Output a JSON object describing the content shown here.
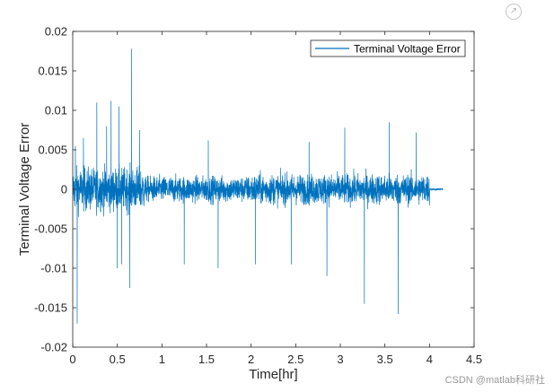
{
  "chart_data": {
    "type": "line",
    "title": "",
    "xlabel": "Time[hr]",
    "ylabel": "Terminal Voltage Error",
    "xlim": [
      0,
      4.5
    ],
    "ylim": [
      -0.02,
      0.02
    ],
    "xticks": [
      0,
      0.5,
      1,
      1.5,
      2,
      2.5,
      3,
      3.5,
      4,
      4.5
    ],
    "xtick_labels": [
      "0",
      "0.5",
      "1",
      "1.5",
      "2",
      "2.5",
      "3",
      "3.5",
      "4",
      "4.5"
    ],
    "yticks": [
      0.02,
      0.015,
      0.01,
      0.005,
      0,
      -0.005,
      -0.01,
      -0.015,
      -0.02
    ],
    "ytick_labels": [
      "0.02",
      "0.015",
      "0.01",
      "0.005",
      "0",
      "-0.005",
      "-0.01",
      "-0.015",
      "-0.02"
    ],
    "grid": false,
    "legend_position": "top-right",
    "series": [
      {
        "name": "Terminal Voltage Error",
        "color": "#0072BD",
        "noise_envelope": [
          {
            "x": [
              0.0,
              0.8
            ],
            "amplitude": 0.005
          },
          {
            "x": [
              0.8,
              2.0
            ],
            "amplitude": 0.003
          },
          {
            "x": [
              2.0,
              4.0
            ],
            "amplitude": 0.0035
          },
          {
            "x": [
              4.0,
              4.15
            ],
            "amplitude": 0.0002
          }
        ],
        "spikes": [
          {
            "x": 0.03,
            "y": 0.0055
          },
          {
            "x": 0.05,
            "y": -0.017
          },
          {
            "x": 0.12,
            "y": 0.0065
          },
          {
            "x": 0.27,
            "y": 0.011
          },
          {
            "x": 0.38,
            "y": 0.008
          },
          {
            "x": 0.43,
            "y": 0.0112
          },
          {
            "x": 0.5,
            "y": -0.01
          },
          {
            "x": 0.52,
            "y": 0.0105
          },
          {
            "x": 0.55,
            "y": -0.0095
          },
          {
            "x": 0.64,
            "y": -0.0125
          },
          {
            "x": 0.66,
            "y": 0.0178
          },
          {
            "x": 0.75,
            "y": 0.0075
          },
          {
            "x": 1.25,
            "y": -0.0095
          },
          {
            "x": 1.52,
            "y": 0.0062
          },
          {
            "x": 1.63,
            "y": -0.01
          },
          {
            "x": 2.05,
            "y": -0.0095
          },
          {
            "x": 2.45,
            "y": -0.0095
          },
          {
            "x": 2.65,
            "y": 0.006
          },
          {
            "x": 2.85,
            "y": -0.011
          },
          {
            "x": 3.05,
            "y": 0.0078
          },
          {
            "x": 3.27,
            "y": -0.0145
          },
          {
            "x": 3.55,
            "y": 0.0085
          },
          {
            "x": 3.65,
            "y": -0.0158
          },
          {
            "x": 3.85,
            "y": 0.0072
          }
        ]
      }
    ]
  },
  "watermark": "CSDN @matlab科研社"
}
